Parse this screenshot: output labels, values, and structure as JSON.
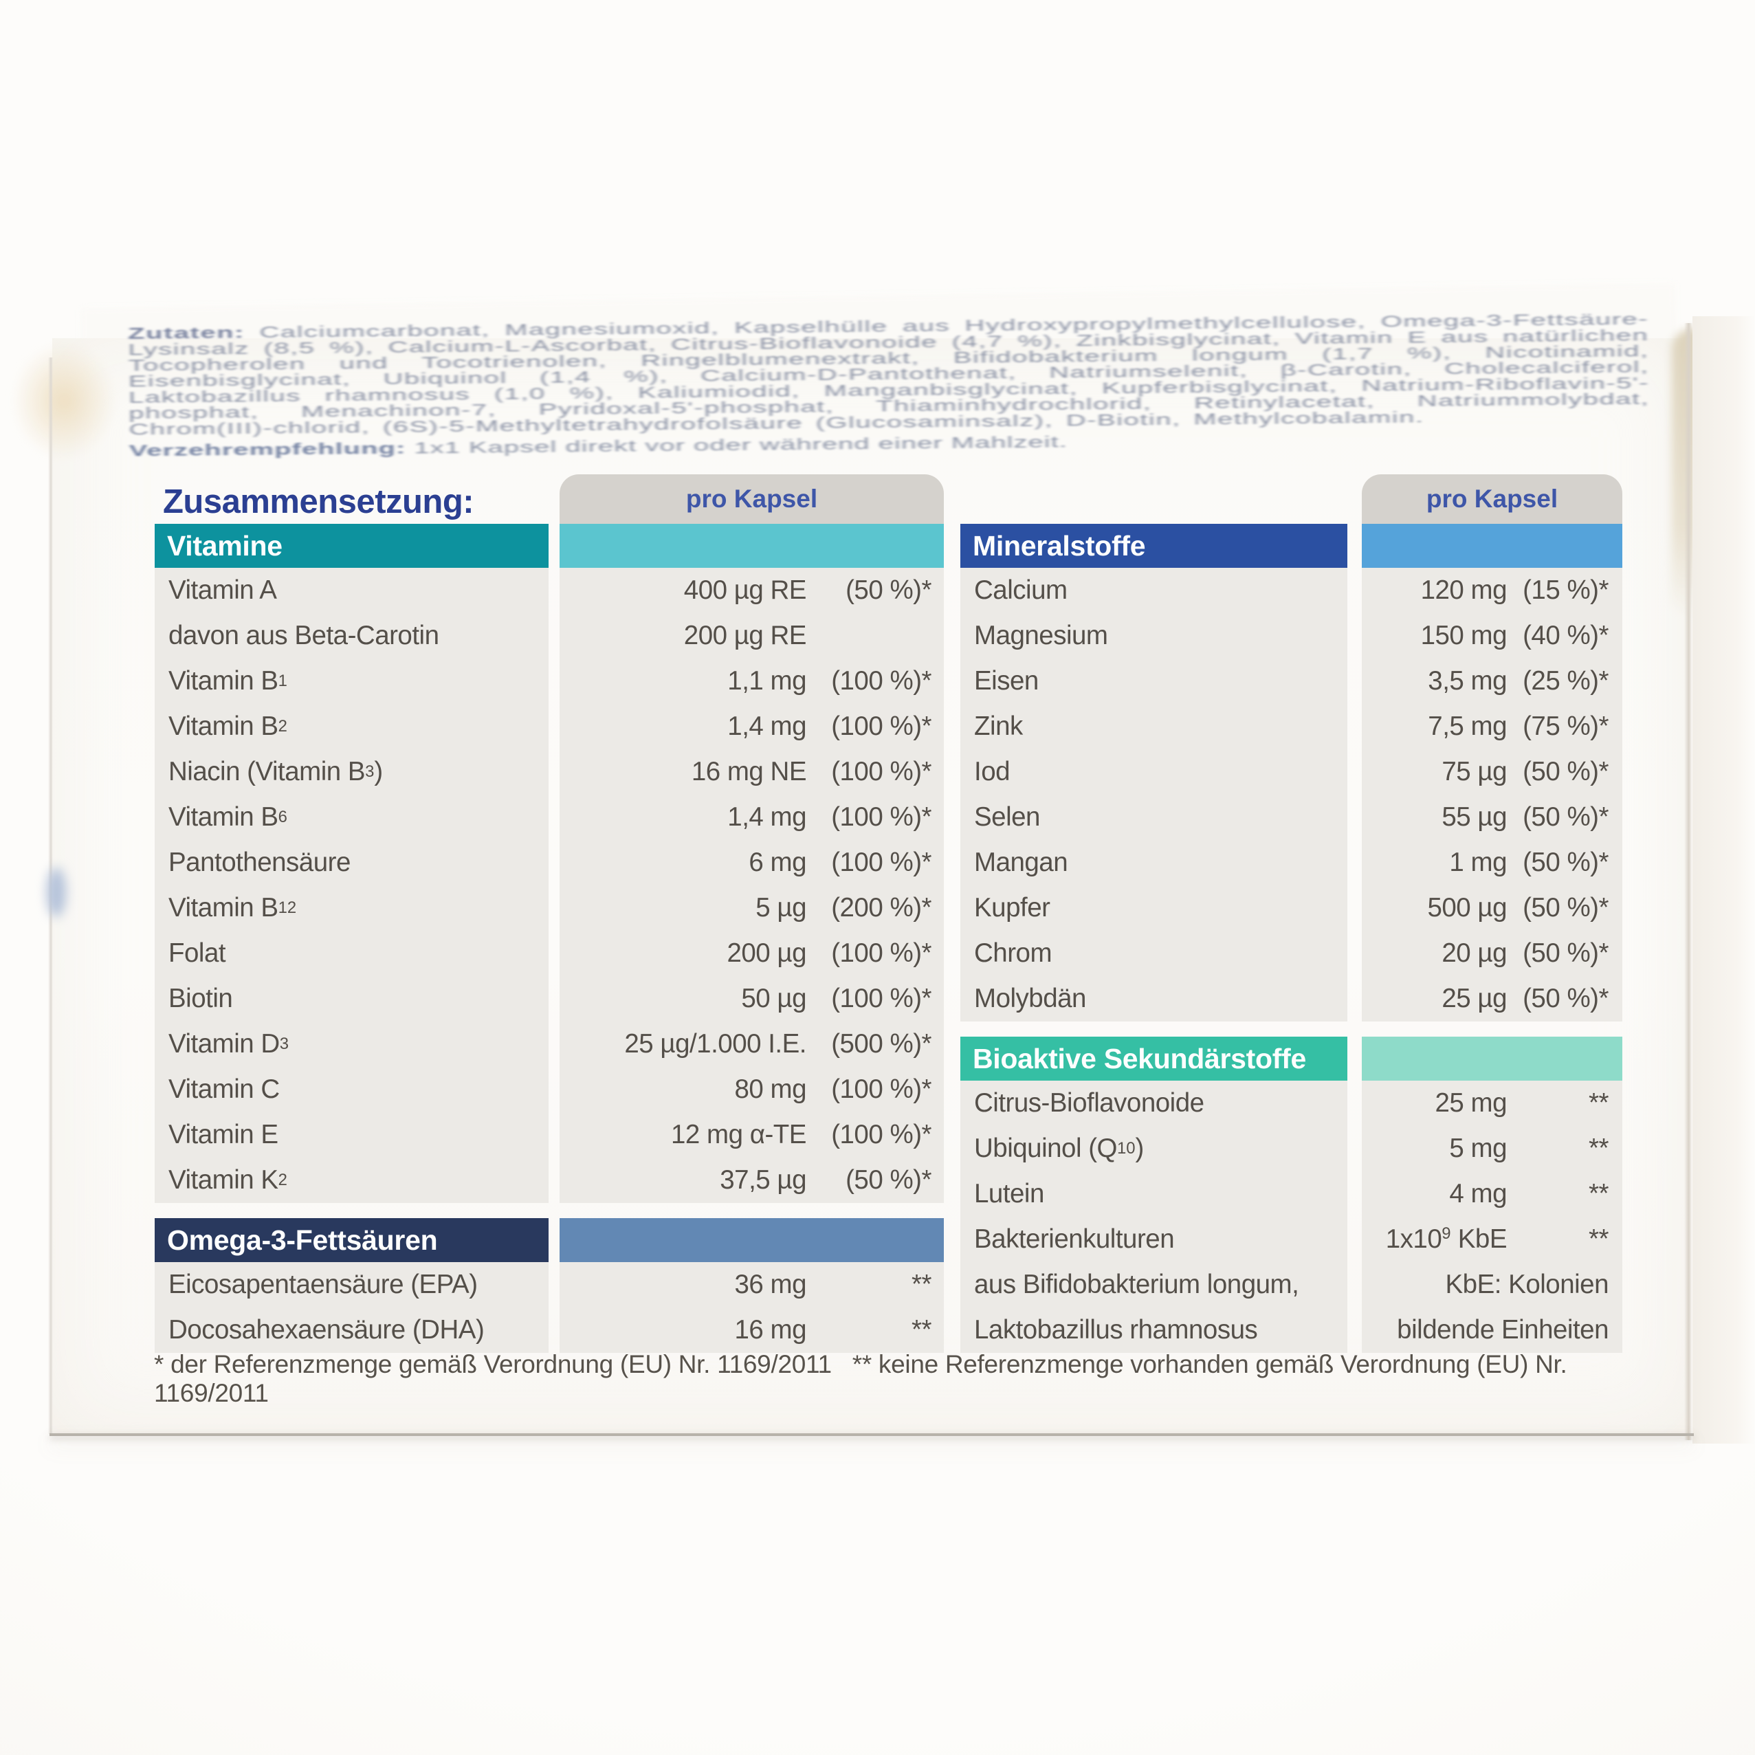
{
  "package": {
    "ingredients_label": "Zutaten:",
    "ingredients_text": " Calciumcarbonat, Magnesiumoxid, Kapselhülle aus Hydroxypropylmethylcellulose, Omega-3-Fettsäure-Lysinsalz (8,5 %), Calcium-L-Ascorbat, Citrus-Bioflavonoide (4,7 %), Zinkbisglycinat, Vitamin E aus natürlichen Tocopherolen und Tocotrienolen, Ringelblumenextrakt, Bifidobakterium longum (1,7 %), Nicotinamid, Eisenbisglycinat, Ubiquinol (1,4 %), Calcium-D-Pantothenat, Natriumselenit, β-Carotin, Cholecalciferol, Laktobazillus rhamnosus (1,0 %), Kaliumiodid, Manganbisglycinat, Kupferbisglycinat, Natrium-Riboflavin-5'-phosphat, Menachinon-7, Pyridoxal-5'-phosphat, Thiaminhydrochlorid, Retinylacetat, Natriummolybdat, Chrom(III)-chlorid, (6S)-5-Methyltetrahydrofolsäure (Glucosaminsalz), D-Biotin, Methylcobalamin.",
    "serving_label": "Verzehrempfehlung:",
    "serving_text": " 1x1 Kapsel direkt vor oder während einer Mahlzeit."
  },
  "composition": {
    "title": "Zusammensetzung:",
    "per_capsule": "pro Kapsel"
  },
  "colors": {
    "title_blue": "#2b3f92",
    "per_capsule_text": "#3e56a8",
    "gray_cap": "#d5d2cd",
    "row_bg": "#eceae6",
    "row_text": "#544f49",
    "vitamine_bar": "#0d929e",
    "vitamine_band": "#5bc5cf",
    "omega_bar": "#29395e",
    "omega_band": "#6288b4",
    "mineral_bar": "#2b50a2",
    "mineral_band": "#55a3da",
    "bioaktiv_bar": "#35bfa4",
    "bioaktiv_band": "#8edbc9"
  },
  "sections": [
    {
      "id": "vitamine",
      "column": "left",
      "title": "Vitamine",
      "bar": "#0d929e",
      "band": "#5bc5cf",
      "gap_before": false,
      "rows": [
        {
          "pre": "Vitamin A",
          "amount": "400 µg RE",
          "pct": "(50 %)*"
        },
        {
          "pre": "davon aus Beta-Carotin",
          "amount": "200 µg RE",
          "pct": ""
        },
        {
          "pre": "Vitamin B",
          "sub": "1",
          "amount": "1,1 mg",
          "pct": "(100 %)*"
        },
        {
          "pre": "Vitamin B",
          "sub": "2",
          "amount": "1,4 mg",
          "pct": "(100 %)*"
        },
        {
          "pre": "Niacin (Vitamin B",
          "sub": "3",
          "post": ")",
          "amount": "16 mg NE",
          "pct": "(100 %)*"
        },
        {
          "pre": "Vitamin B",
          "sub": "6",
          "amount": "1,4 mg",
          "pct": "(100 %)*"
        },
        {
          "pre": "Pantothensäure",
          "amount": "6 mg",
          "pct": "(100 %)*"
        },
        {
          "pre": "Vitamin B",
          "sub": "12",
          "amount": "5 µg",
          "pct": "(200 %)*"
        },
        {
          "pre": "Folat",
          "amount": "200 µg",
          "pct": "(100 %)*"
        },
        {
          "pre": "Biotin",
          "amount": "50 µg",
          "pct": "(100 %)*"
        },
        {
          "pre": "Vitamin D",
          "sub": "3",
          "amount": "25 µg/1.000 I.E.",
          "pct": "(500 %)*"
        },
        {
          "pre": "Vitamin C",
          "amount": "80 mg",
          "pct": "(100 %)*"
        },
        {
          "pre": "Vitamin E",
          "amount": "12 mg α-TE",
          "pct": "(100 %)*"
        },
        {
          "pre": "Vitamin K",
          "sub": "2",
          "amount": "37,5 µg",
          "pct": "(50 %)*"
        }
      ]
    },
    {
      "id": "omega3",
      "column": "left",
      "title": "Omega-3-Fettsäuren",
      "bar": "#29395e",
      "band": "#6288b4",
      "gap_before": true,
      "rows": [
        {
          "pre": "Eicosapentaensäure (EPA)",
          "amount": "36 mg",
          "pct": "**"
        },
        {
          "pre": "Docosahexaensäure (DHA)",
          "amount": "16 mg",
          "pct": "**"
        }
      ]
    },
    {
      "id": "mineralstoffe",
      "column": "right",
      "title": "Mineralstoffe",
      "bar": "#2b50a2",
      "band": "#55a3da",
      "gap_before": false,
      "rows": [
        {
          "pre": "Calcium",
          "amount": "120 mg",
          "pct": "(15 %)*"
        },
        {
          "pre": "Magnesium",
          "amount": "150 mg",
          "pct": "(40 %)*"
        },
        {
          "pre": "Eisen",
          "amount": "3,5 mg",
          "pct": "(25 %)*"
        },
        {
          "pre": "Zink",
          "amount": "7,5 mg",
          "pct": "(75 %)*"
        },
        {
          "pre": "Iod",
          "amount": "75 µg",
          "pct": "(50 %)*"
        },
        {
          "pre": "Selen",
          "amount": "55 µg",
          "pct": "(50 %)*"
        },
        {
          "pre": "Mangan",
          "amount": "1 mg",
          "pct": "(50 %)*"
        },
        {
          "pre": "Kupfer",
          "amount": "500 µg",
          "pct": "(50 %)*"
        },
        {
          "pre": "Chrom",
          "amount": "20 µg",
          "pct": "(50 %)*"
        },
        {
          "pre": "Molybdän",
          "amount": "25 µg",
          "pct": "(50 %)*"
        }
      ]
    },
    {
      "id": "bioaktive",
      "column": "right",
      "title": "Bioaktive Sekundärstoffe",
      "bar": "#35bfa4",
      "band": "#8edbc9",
      "gap_before": true,
      "rows": [
        {
          "pre": "Citrus-Bioflavonoide",
          "amount": "25 mg",
          "pct": "**"
        },
        {
          "pre": "Ubiquinol (Q",
          "sub": "10",
          "post": ")",
          "amount": "5 mg",
          "pct": "**"
        },
        {
          "pre": "Lutein",
          "amount": "4 mg",
          "pct": "**"
        },
        {
          "pre": "Bakterienkulturen",
          "amount": "1x10",
          "amount_sup": "9",
          "amount_post": " KbE",
          "pct": "**"
        },
        {
          "pre": "aus Bifidobakterium longum,",
          "note": "KbE: Kolonien"
        },
        {
          "pre": "Laktobazillus rhamnosus",
          "note": "bildende Einheiten"
        }
      ]
    }
  ],
  "footnote": "* der Referenzmenge gemäß Verordnung (EU) Nr. 1169/2011   ** keine Referenzmenge vorhanden gemäß Verordnung (EU) Nr. 1169/2011"
}
